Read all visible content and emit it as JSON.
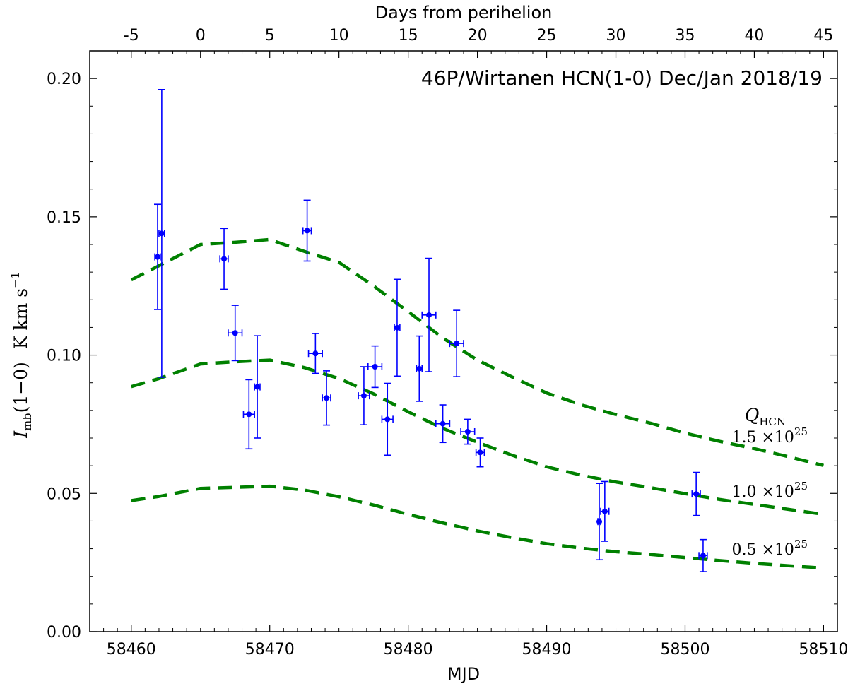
{
  "chart_data": {
    "type": "scatter",
    "title": "46P/Wirtanen  HCN(1-0)  Dec/Jan 2018/19",
    "xlabel": "MJD",
    "x2label": "Days from perihelion",
    "ylabel": {
      "symbol": "I",
      "subscript": "mb",
      "rest": "(1−0)",
      "units": "K km s",
      "units_exponent": "−1"
    },
    "xlim": [
      58457,
      58511
    ],
    "ylim": [
      0.0,
      0.21
    ],
    "x_ticks": [
      58460,
      58470,
      58480,
      58490,
      58500,
      58510
    ],
    "x_tick_labels": [
      "58460",
      "58470",
      "58480",
      "58490",
      "58500",
      "58510"
    ],
    "y_ticks": [
      0.0,
      0.05,
      0.1,
      0.15,
      0.2
    ],
    "y_tick_labels": [
      "0.00",
      "0.05",
      "0.10",
      "0.15",
      "0.20"
    ],
    "x2_ticks": [
      -5,
      0,
      5,
      10,
      15,
      20,
      25,
      30,
      35,
      40,
      45
    ],
    "x2_tick_labels": [
      "-5",
      "0",
      "5",
      "10",
      "15",
      "20",
      "25",
      "30",
      "35",
      "40",
      "45"
    ],
    "perihelion_mjd": 58465,
    "colors": {
      "points": "#0000ff",
      "model": "#008000"
    },
    "observations": [
      {
        "x": 58461.9,
        "xerr": 0.2,
        "y": 0.1355,
        "yerr": 0.019
      },
      {
        "x": 58462.2,
        "xerr": 0.2,
        "y": 0.144,
        "yerr": 0.052
      },
      {
        "x": 58466.7,
        "xerr": 0.3,
        "y": 0.1348,
        "yerr": 0.011
      },
      {
        "x": 58467.5,
        "xerr": 0.5,
        "y": 0.108,
        "yerr": 0.01
      },
      {
        "x": 58468.5,
        "xerr": 0.4,
        "y": 0.0786,
        "yerr": 0.0125
      },
      {
        "x": 58469.1,
        "xerr": 0.2,
        "y": 0.0885,
        "yerr": 0.0185
      },
      {
        "x": 58472.7,
        "xerr": 0.3,
        "y": 0.145,
        "yerr": 0.011
      },
      {
        "x": 58473.3,
        "xerr": 0.5,
        "y": 0.1006,
        "yerr": 0.0072
      },
      {
        "x": 58474.1,
        "xerr": 0.3,
        "y": 0.0845,
        "yerr": 0.0098
      },
      {
        "x": 58476.8,
        "xerr": 0.4,
        "y": 0.0853,
        "yerr": 0.0105
      },
      {
        "x": 58477.6,
        "xerr": 0.5,
        "y": 0.0958,
        "yerr": 0.0075
      },
      {
        "x": 58478.5,
        "xerr": 0.4,
        "y": 0.0768,
        "yerr": 0.013
      },
      {
        "x": 58479.2,
        "xerr": 0.2,
        "y": 0.1099,
        "yerr": 0.0175
      },
      {
        "x": 58480.8,
        "xerr": 0.2,
        "y": 0.0951,
        "yerr": 0.0118
      },
      {
        "x": 58481.5,
        "xerr": 0.5,
        "y": 0.1145,
        "yerr": 0.0205
      },
      {
        "x": 58482.5,
        "xerr": 0.5,
        "y": 0.0752,
        "yerr": 0.0068
      },
      {
        "x": 58483.5,
        "xerr": 0.5,
        "y": 0.1042,
        "yerr": 0.012
      },
      {
        "x": 58484.3,
        "xerr": 0.5,
        "y": 0.0723,
        "yerr": 0.0045
      },
      {
        "x": 58485.2,
        "xerr": 0.3,
        "y": 0.0648,
        "yerr": 0.0052
      },
      {
        "x": 58493.8,
        "xerr": 0.1,
        "y": 0.0398,
        "yerr": 0.0138
      },
      {
        "x": 58494.2,
        "xerr": 0.3,
        "y": 0.0435,
        "yerr": 0.0108
      },
      {
        "x": 58500.8,
        "xerr": 0.3,
        "y": 0.0498,
        "yerr": 0.0078
      },
      {
        "x": 58501.3,
        "xerr": 0.3,
        "y": 0.0275,
        "yerr": 0.0058
      }
    ],
    "model_header": {
      "symbol": "Q",
      "subscript": "HCN"
    },
    "model_curves": [
      {
        "name": "1.5 ×10",
        "name_exponent": "25",
        "x": [
          58460,
          58462,
          58465,
          58467.5,
          58470,
          58472.5,
          58475,
          58477.5,
          58480,
          58482.5,
          58485,
          58487.5,
          58490,
          58492.5,
          58495,
          58497.5,
          58500,
          58502.5,
          58505,
          58507.5,
          58510
        ],
        "y": [
          0.1272,
          0.1323,
          0.14,
          0.1408,
          0.1418,
          0.1375,
          0.1335,
          0.125,
          0.1157,
          0.1062,
          0.0982,
          0.0921,
          0.0863,
          0.082,
          0.0785,
          0.0754,
          0.0718,
          0.0688,
          0.0662,
          0.0632,
          0.0601
        ]
      },
      {
        "name": "1.0 ×10",
        "name_exponent": "25",
        "x": [
          58460,
          58462,
          58465,
          58467.5,
          58470,
          58472.5,
          58475,
          58477.5,
          58480,
          58482.5,
          58485,
          58487.5,
          58490,
          58492.5,
          58495,
          58497.5,
          58500,
          58502.5,
          58505,
          58507.5,
          58510
        ],
        "y": [
          0.0886,
          0.0915,
          0.0968,
          0.0976,
          0.0982,
          0.0955,
          0.0915,
          0.086,
          0.0795,
          0.0735,
          0.0685,
          0.0638,
          0.0596,
          0.0566,
          0.0541,
          0.0521,
          0.0499,
          0.0478,
          0.046,
          0.0442,
          0.0424
        ]
      },
      {
        "name": "0.5 ×10",
        "name_exponent": "25",
        "x": [
          58460,
          58462,
          58465,
          58467.5,
          58470,
          58472.5,
          58475,
          58477.5,
          58480,
          58482.5,
          58485,
          58487.5,
          58490,
          58492.5,
          58495,
          58497.5,
          58500,
          58502.5,
          58505,
          58507.5,
          58510
        ],
        "y": [
          0.0474,
          0.0489,
          0.0518,
          0.0522,
          0.0526,
          0.0512,
          0.0488,
          0.0458,
          0.0424,
          0.0393,
          0.0364,
          0.034,
          0.0318,
          0.0302,
          0.0289,
          0.0279,
          0.0268,
          0.0257,
          0.0247,
          0.0238,
          0.023
        ]
      }
    ]
  }
}
